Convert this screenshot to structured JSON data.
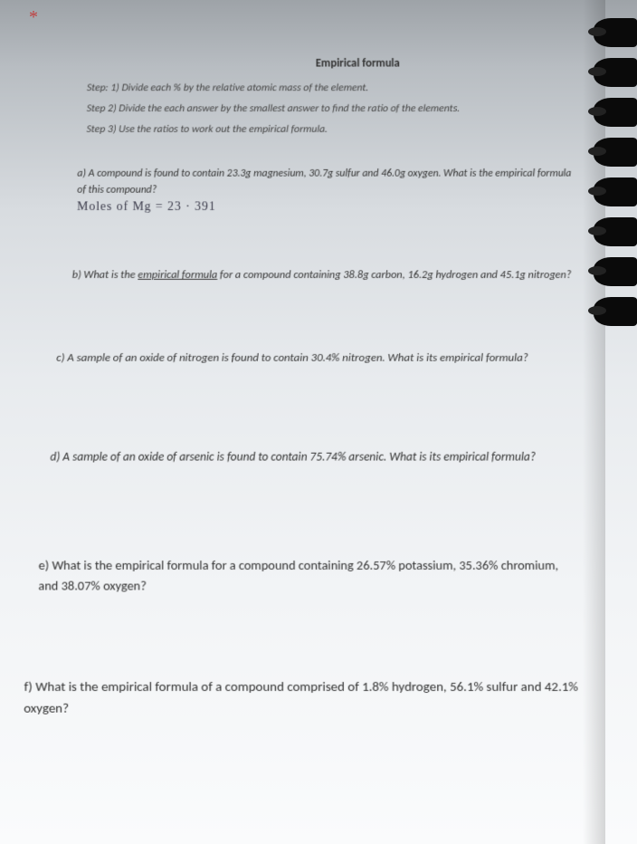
{
  "marker": "*",
  "title": "Empirical formula",
  "steps": [
    "Step: 1) Divide each % by the relative atomic mass of the element.",
    "Step 2) Divide the each answer by the smallest answer to find the ratio of the elements.",
    "Step 3) Use the ratios to work out the empirical formula."
  ],
  "questions": {
    "a": "a) A compound is found to contain 23.3g magnesium, 30.7g sulfur and 46.0g oxygen. What is the empirical formula of this compound?",
    "a_handwriting": "Moles of Mg = 23 · 391",
    "b_prefix": "b) What is the ",
    "b_underlined": "empirical formula",
    "b_suffix": " for a compound containing 38.8g carbon, 16.2g hydrogen and 45.1g nitrogen?",
    "c": "c) A sample of an oxide of nitrogen is found to contain 30.4% nitrogen. What is its empirical formula?",
    "d": "d) A sample of an oxide of arsenic is found to contain 75.74% arsenic. What is its empirical formula?",
    "e": "e) What is the empirical formula for a compound containing 26.57% potassium, 35.36% chromium, and 38.07% oxygen?",
    "f": "f) What is the empirical formula of a compound comprised of 1.8% hydrogen, 56.1% sulfur and 42.1% oxygen?"
  },
  "spiral": {
    "ring_count": 8,
    "ring_spacing": 44,
    "ring_start": 20,
    "ring_color": "#0a0a0a"
  }
}
